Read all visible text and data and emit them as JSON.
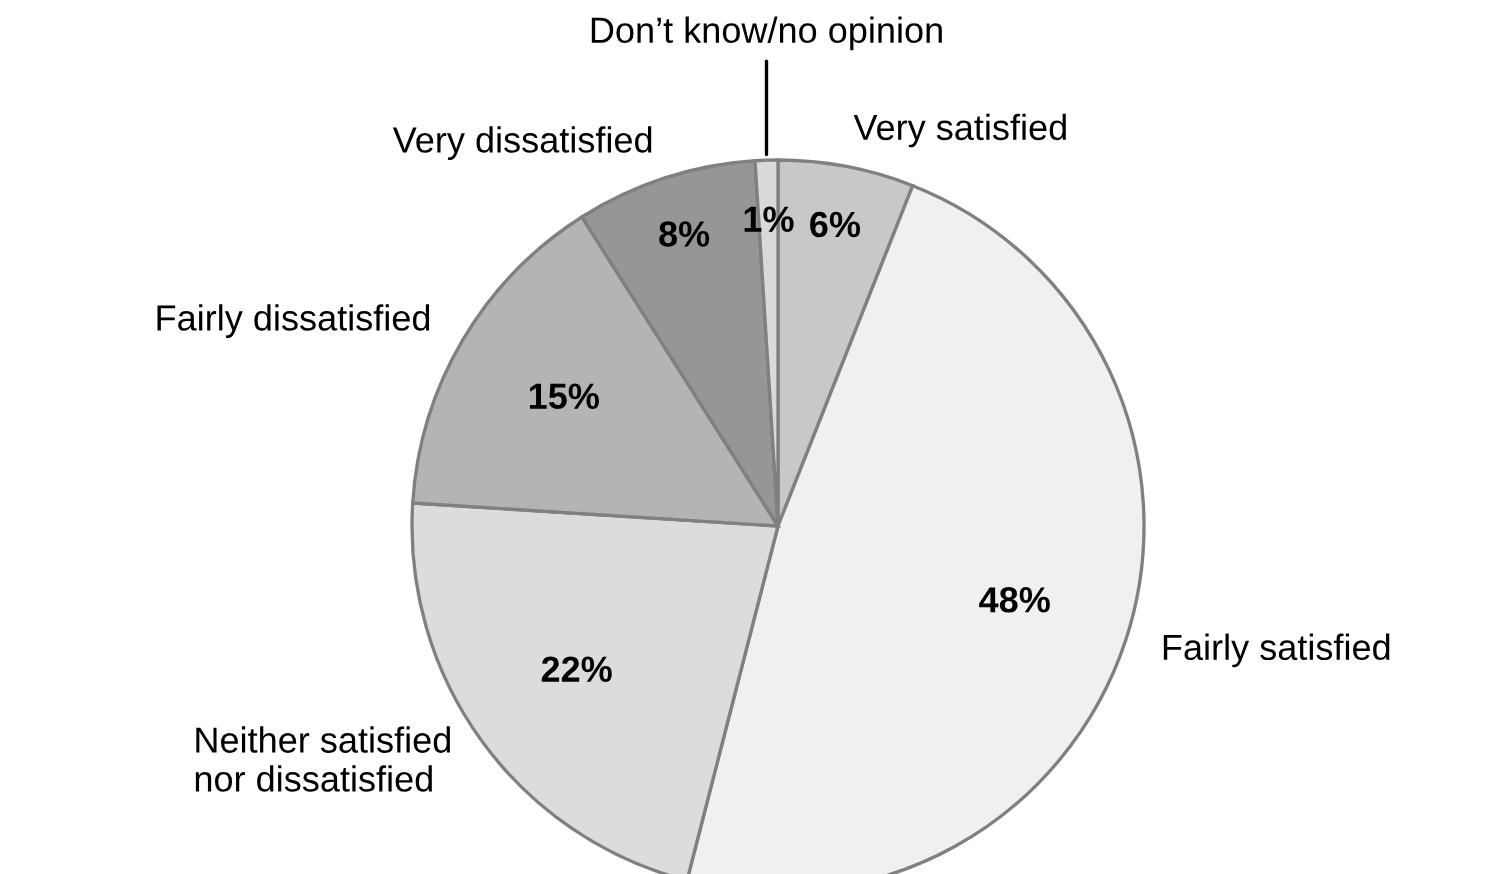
{
  "chart_data": {
    "type": "pie",
    "categories": [
      "Very satisfied",
      "Fairly satisfied",
      "Neither satisfied\nnor dissatisfied",
      "Fairly dissatisfied",
      "Very dissatisfied",
      "Don’t know/no opinion"
    ],
    "values": [
      6,
      48,
      22,
      15,
      8,
      1
    ],
    "colors": [
      "#c8c8c8",
      "#f0f0f0",
      "#dcdcdc",
      "#b4b4b4",
      "#969696",
      "#d9d9d9"
    ],
    "value_labels": [
      "6%",
      "48%",
      "22%",
      "15%",
      "8%",
      "1%"
    ]
  }
}
